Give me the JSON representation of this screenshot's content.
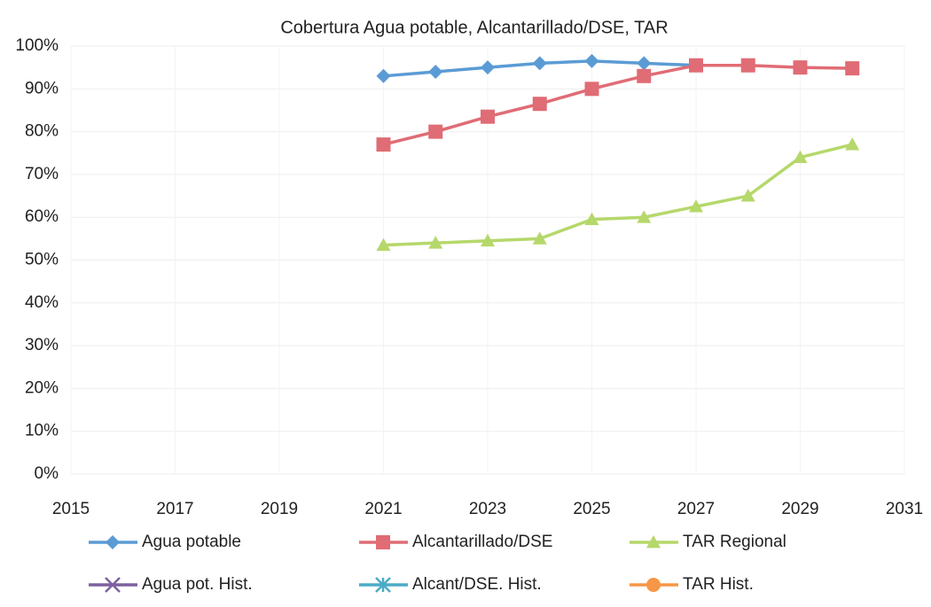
{
  "chart_data": {
    "type": "line",
    "title": "Cobertura Agua potable, Alcantarillado/DSE, TAR",
    "x": [
      2021,
      2022,
      2023,
      2024,
      2025,
      2026,
      2027,
      2028,
      2029,
      2030
    ],
    "xlim": [
      2015,
      2031
    ],
    "xticks": [
      2015,
      2017,
      2019,
      2021,
      2023,
      2025,
      2027,
      2029,
      2031
    ],
    "ylim": [
      0,
      100
    ],
    "yticks": [
      {
        "value": 0,
        "label": "0%"
      },
      {
        "value": 10,
        "label": "10%"
      },
      {
        "value": 20,
        "label": "20%"
      },
      {
        "value": 30,
        "label": "30%"
      },
      {
        "value": 40,
        "label": "40%"
      },
      {
        "value": 50,
        "label": "50%"
      },
      {
        "value": 60,
        "label": "60%"
      },
      {
        "value": 70,
        "label": "70%"
      },
      {
        "value": 80,
        "label": "80%"
      },
      {
        "value": 90,
        "label": "90%"
      },
      {
        "value": 100,
        "label": "100%"
      }
    ],
    "grid": true,
    "legend": "bottom",
    "series": [
      {
        "name": "Agua potable",
        "color": "#5b9bd5",
        "marker": "diamond",
        "values": [
          93,
          94,
          95,
          96,
          96.5,
          96,
          95.5,
          null,
          null,
          null
        ]
      },
      {
        "name": "Alcantarillado/DSE",
        "color": "#e06c75",
        "marker": "square",
        "values": [
          77,
          80,
          83.5,
          86.5,
          90,
          93,
          95.5,
          95.5,
          95,
          94.8
        ]
      },
      {
        "name": "TAR Regional",
        "color": "#b5d86a",
        "marker": "triangle",
        "values": [
          53.5,
          54,
          54.5,
          55,
          59.5,
          60,
          62.5,
          65,
          74,
          77
        ]
      },
      {
        "name": "Agua pot. Hist.",
        "color": "#7e60a0",
        "marker": "x",
        "values": [
          null,
          null,
          null,
          null,
          null,
          null,
          null,
          null,
          null,
          null
        ]
      },
      {
        "name": "Alcant/DSE. Hist.",
        "color": "#4bacc6",
        "marker": "star",
        "values": [
          null,
          null,
          null,
          null,
          null,
          null,
          null,
          null,
          null,
          null
        ]
      },
      {
        "name": "TAR Hist.",
        "color": "#f79646",
        "marker": "circle",
        "values": [
          null,
          null,
          null,
          null,
          null,
          null,
          null,
          null,
          null,
          null
        ]
      }
    ]
  }
}
